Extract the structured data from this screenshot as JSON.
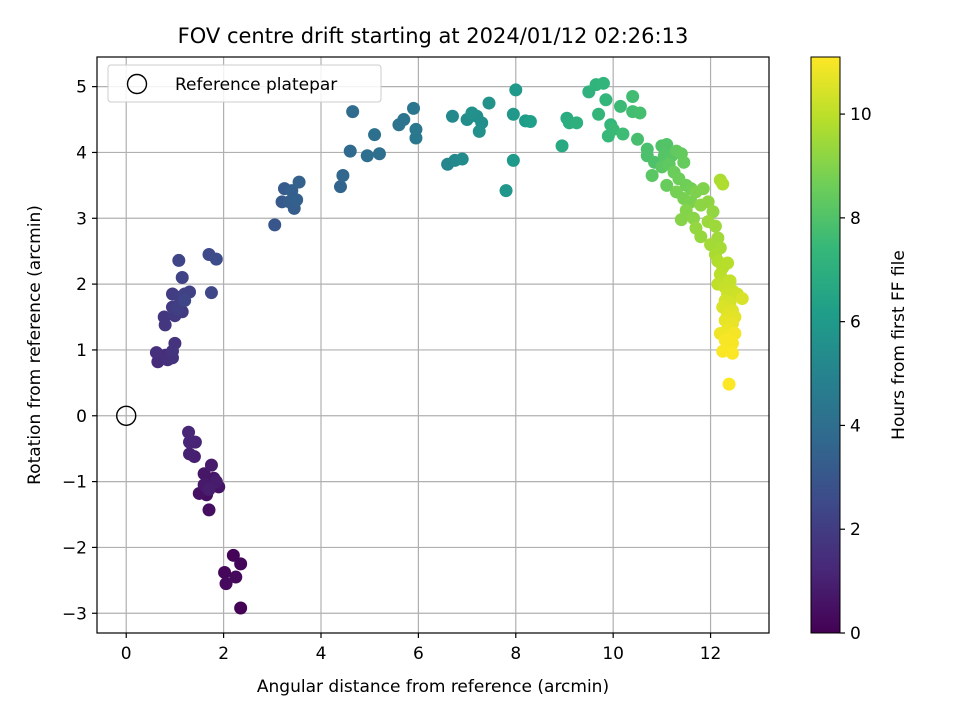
{
  "chart_data": {
    "type": "scatter",
    "title": "FOV centre drift starting at 2024/01/12 02:26:13",
    "xlabel": "Angular distance from reference (arcmin)",
    "ylabel": "Rotation from reference (arcmin)",
    "xlim": [
      -0.6,
      13.2
    ],
    "ylim": [
      -3.3,
      5.45
    ],
    "xticks": [
      0,
      2,
      4,
      6,
      8,
      10,
      12
    ],
    "yticks": [
      -3,
      -2,
      -1,
      0,
      1,
      2,
      3,
      4,
      5
    ],
    "grid": true,
    "legend": {
      "position": "top-left",
      "entries": [
        {
          "label": "Reference platepar",
          "marker": "open-circle",
          "x": 0,
          "y": 0
        }
      ]
    },
    "colorbar": {
      "label": "Hours from first FF file",
      "colormap": "viridis",
      "range": [
        0,
        11.1
      ],
      "ticks": [
        0,
        2,
        4,
        6,
        8,
        10
      ],
      "stops": [
        "#440154",
        "#482878",
        "#3e4989",
        "#31688e",
        "#26828e",
        "#1f9e89",
        "#35b779",
        "#6ece58",
        "#b5de2b",
        "#fde725"
      ]
    },
    "points": [
      [
        2.35,
        -2.92,
        0.05
      ],
      [
        2.2,
        -2.12,
        0.1
      ],
      [
        2.35,
        -2.25,
        0.15
      ],
      [
        2.02,
        -2.38,
        0.2
      ],
      [
        2.25,
        -2.45,
        0.25
      ],
      [
        2.05,
        -2.55,
        0.3
      ],
      [
        1.7,
        -1.43,
        0.4
      ],
      [
        1.65,
        -1.2,
        0.45
      ],
      [
        1.5,
        -1.18,
        0.5
      ],
      [
        1.75,
        -1.05,
        0.55
      ],
      [
        1.9,
        -1.08,
        0.6
      ],
      [
        1.6,
        -0.88,
        0.65
      ],
      [
        1.8,
        -0.95,
        0.7
      ],
      [
        1.6,
        -1.05,
        0.75
      ],
      [
        1.75,
        -0.75,
        0.8
      ],
      [
        1.85,
        -1.0,
        0.85
      ],
      [
        1.7,
        -1.12,
        0.9
      ],
      [
        1.4,
        -0.62,
        0.95
      ],
      [
        1.3,
        -0.58,
        1.0
      ],
      [
        1.42,
        -0.4,
        1.1
      ],
      [
        1.3,
        -0.4,
        1.15
      ],
      [
        1.28,
        -0.25,
        1.2
      ],
      [
        0.65,
        0.82,
        1.4
      ],
      [
        0.8,
        0.92,
        1.45
      ],
      [
        0.62,
        0.96,
        1.5
      ],
      [
        0.85,
        0.85,
        1.55
      ],
      [
        0.95,
        0.88,
        1.6
      ],
      [
        1.0,
        1.1,
        1.65
      ],
      [
        0.95,
        0.98,
        1.7
      ],
      [
        0.8,
        1.38,
        1.75
      ],
      [
        0.78,
        1.5,
        1.8
      ],
      [
        1.0,
        1.52,
        1.85
      ],
      [
        1.15,
        1.58,
        1.9
      ],
      [
        0.95,
        1.65,
        1.95
      ],
      [
        0.95,
        1.85,
        2.0
      ],
      [
        1.1,
        1.8,
        2.05
      ],
      [
        1.05,
        1.62,
        2.1
      ],
      [
        1.2,
        1.85,
        2.15
      ],
      [
        1.3,
        1.88,
        2.2
      ],
      [
        1.15,
        2.1,
        2.25
      ],
      [
        1.08,
        2.36,
        2.3
      ],
      [
        1.2,
        1.75,
        2.35
      ],
      [
        1.75,
        1.87,
        2.4
      ],
      [
        1.7,
        2.45,
        2.5
      ],
      [
        1.85,
        2.38,
        2.6
      ],
      [
        3.05,
        2.9,
        3.0
      ],
      [
        3.2,
        3.25,
        3.1
      ],
      [
        3.25,
        3.45,
        3.2
      ],
      [
        3.45,
        3.15,
        3.25
      ],
      [
        3.35,
        3.25,
        3.3
      ],
      [
        3.4,
        3.42,
        3.35
      ],
      [
        3.5,
        3.28,
        3.4
      ],
      [
        3.55,
        3.55,
        3.45
      ],
      [
        4.4,
        3.48,
        3.6
      ],
      [
        4.45,
        3.65,
        3.65
      ],
      [
        4.6,
        4.02,
        3.8
      ],
      [
        4.65,
        4.62,
        3.9
      ],
      [
        4.95,
        3.95,
        4.0
      ],
      [
        5.2,
        3.98,
        4.05
      ],
      [
        5.1,
        4.27,
        4.1
      ],
      [
        5.6,
        4.42,
        4.2
      ],
      [
        5.7,
        4.5,
        4.25
      ],
      [
        5.9,
        4.67,
        4.3
      ],
      [
        5.95,
        4.35,
        4.4
      ],
      [
        5.95,
        4.22,
        4.45
      ],
      [
        6.6,
        3.82,
        5.1
      ],
      [
        6.75,
        3.88,
        5.2
      ],
      [
        6.7,
        4.55,
        5.25
      ],
      [
        6.9,
        3.9,
        5.35
      ],
      [
        7.0,
        4.5,
        5.4
      ],
      [
        7.2,
        4.55,
        5.45
      ],
      [
        7.3,
        4.45,
        5.5
      ],
      [
        7.25,
        4.32,
        5.55
      ],
      [
        7.1,
        4.6,
        5.6
      ],
      [
        7.45,
        4.75,
        5.65
      ],
      [
        7.8,
        3.42,
        5.8
      ],
      [
        7.95,
        4.58,
        5.9
      ],
      [
        8.0,
        4.95,
        5.95
      ],
      [
        7.95,
        3.88,
        6.0
      ],
      [
        8.2,
        4.48,
        6.1
      ],
      [
        8.3,
        4.47,
        6.2
      ],
      [
        8.95,
        4.1,
        6.7
      ],
      [
        9.05,
        4.52,
        6.8
      ],
      [
        9.1,
        4.45,
        6.9
      ],
      [
        9.25,
        4.45,
        7.0
      ],
      [
        9.5,
        4.92,
        7.1
      ],
      [
        9.65,
        5.03,
        7.2
      ],
      [
        9.8,
        5.05,
        7.25
      ],
      [
        9.7,
        4.58,
        7.3
      ],
      [
        9.85,
        4.8,
        7.35
      ],
      [
        9.95,
        4.42,
        7.4
      ],
      [
        9.9,
        4.25,
        7.45
      ],
      [
        10.0,
        4.35,
        7.5
      ],
      [
        10.15,
        4.7,
        7.55
      ],
      [
        10.2,
        4.28,
        7.6
      ],
      [
        10.4,
        4.85,
        7.65
      ],
      [
        10.4,
        4.62,
        7.7
      ],
      [
        10.55,
        4.6,
        7.75
      ],
      [
        10.5,
        4.2,
        7.8
      ],
      [
        10.7,
        4.05,
        7.85
      ],
      [
        10.7,
        3.95,
        7.9
      ],
      [
        10.85,
        3.85,
        7.95
      ],
      [
        11.0,
        4.1,
        8.0
      ],
      [
        11.1,
        4.12,
        8.05
      ],
      [
        11.05,
        3.95,
        8.1
      ],
      [
        11.2,
        3.95,
        8.15
      ],
      [
        10.8,
        3.65,
        8.2
      ],
      [
        11.0,
        3.78,
        8.25
      ],
      [
        11.15,
        3.82,
        8.3
      ],
      [
        11.3,
        4.02,
        8.35
      ],
      [
        11.4,
        3.98,
        8.4
      ],
      [
        11.45,
        3.85,
        8.45
      ],
      [
        11.1,
        3.5,
        8.5
      ],
      [
        11.25,
        3.7,
        8.55
      ],
      [
        11.35,
        3.6,
        8.6
      ],
      [
        11.5,
        3.5,
        8.65
      ],
      [
        11.6,
        3.45,
        8.7
      ],
      [
        11.3,
        3.4,
        8.75
      ],
      [
        11.45,
        3.3,
        8.8
      ],
      [
        11.6,
        3.25,
        8.85
      ],
      [
        11.7,
        3.4,
        8.9
      ],
      [
        11.85,
        3.45,
        8.95
      ],
      [
        11.5,
        3.12,
        9.0
      ],
      [
        11.4,
        2.98,
        9.05
      ],
      [
        11.65,
        3.0,
        9.1
      ],
      [
        11.8,
        3.2,
        9.15
      ],
      [
        11.95,
        3.25,
        9.2
      ],
      [
        12.05,
        3.1,
        9.25
      ],
      [
        11.7,
        2.85,
        9.3
      ],
      [
        11.8,
        2.72,
        9.35
      ],
      [
        11.95,
        2.95,
        9.4
      ],
      [
        12.1,
        2.88,
        9.45
      ],
      [
        12.15,
        2.7,
        9.5
      ],
      [
        12.0,
        2.6,
        9.55
      ],
      [
        12.2,
        2.55,
        9.6
      ],
      [
        12.1,
        2.45,
        9.65
      ],
      [
        12.2,
        3.58,
        9.7
      ],
      [
        12.25,
        3.52,
        9.75
      ],
      [
        12.15,
        2.35,
        9.8
      ],
      [
        12.25,
        2.25,
        9.85
      ],
      [
        12.35,
        2.32,
        9.9
      ],
      [
        12.2,
        2.15,
        9.95
      ],
      [
        12.3,
        2.05,
        10.0
      ],
      [
        12.15,
        2.0,
        10.05
      ],
      [
        12.4,
        2.05,
        10.1
      ],
      [
        12.3,
        1.95,
        10.15
      ],
      [
        12.45,
        1.9,
        10.2
      ],
      [
        12.35,
        1.85,
        10.25
      ],
      [
        12.55,
        1.85,
        10.3
      ],
      [
        12.3,
        1.75,
        10.35
      ],
      [
        12.4,
        1.72,
        10.4
      ],
      [
        12.65,
        1.78,
        10.45
      ],
      [
        12.25,
        1.65,
        10.5
      ],
      [
        12.45,
        1.6,
        10.55
      ],
      [
        12.35,
        1.55,
        10.6
      ],
      [
        12.5,
        1.5,
        10.65
      ],
      [
        12.3,
        1.45,
        10.7
      ],
      [
        12.45,
        1.4,
        10.75
      ],
      [
        12.35,
        1.32,
        10.8
      ],
      [
        12.2,
        1.25,
        10.85
      ],
      [
        12.4,
        1.22,
        10.9
      ],
      [
        12.5,
        1.25,
        10.95
      ],
      [
        12.3,
        1.15,
        11.0
      ],
      [
        12.45,
        1.1,
        11.02
      ],
      [
        12.25,
        0.98,
        11.04
      ],
      [
        12.45,
        0.95,
        11.06
      ],
      [
        12.38,
        0.48,
        11.08
      ]
    ]
  }
}
